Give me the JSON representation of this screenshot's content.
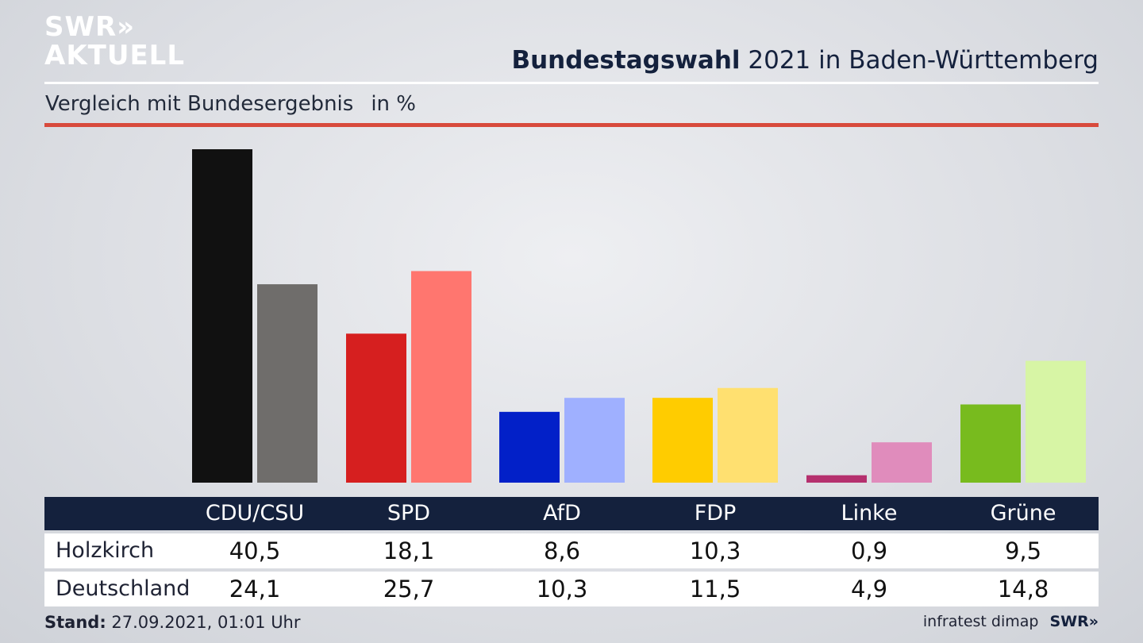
{
  "logo": {
    "line1": "SWR»",
    "line2": "AKTUELL"
  },
  "header": {
    "title_bold": "Bundestagswahl",
    "title_rest": "2021 in Baden-Württemberg",
    "subtitle": "Vergleich mit Bundesergebnis",
    "unit": "in %"
  },
  "footer": {
    "stand_label": "Stand:",
    "stand_value": "27.09.2021, 01:01 Uhr",
    "source": "infratest dimap",
    "brand": "SWR»"
  },
  "chart_data": {
    "type": "bar",
    "title": "Bundestagswahl 2021 in Baden-Württemberg",
    "subtitle": "Vergleich mit Bundesergebnis",
    "unit": "in %",
    "categories": [
      "CDU/CSU",
      "SPD",
      "AfD",
      "FDP",
      "Linke",
      "Grüne"
    ],
    "series": [
      {
        "name": "Holzkirch",
        "values": [
          40.5,
          18.1,
          8.6,
          10.3,
          0.9,
          9.5
        ],
        "display": [
          "40,5",
          "18,1",
          "8,6",
          "10,3",
          "0,9",
          "9,5"
        ]
      },
      {
        "name": "Deutschland",
        "values": [
          24.1,
          25.7,
          10.3,
          11.5,
          4.9,
          14.8
        ],
        "display": [
          "24,1",
          "25,7",
          "10,3",
          "11,5",
          "4,9",
          "14,8"
        ]
      }
    ],
    "colors": {
      "Holzkirch": [
        "#111111",
        "#d61f1f",
        "#0220c8",
        "#ffcc00",
        "#b5306e",
        "#78bb1e"
      ],
      "Deutschland": [
        "#6f6d6b",
        "#ff766f",
        "#9fb0ff",
        "#ffe070",
        "#e08cbc",
        "#d7f5a5"
      ]
    },
    "ylim": [
      0,
      40.5
    ],
    "grid": false
  }
}
